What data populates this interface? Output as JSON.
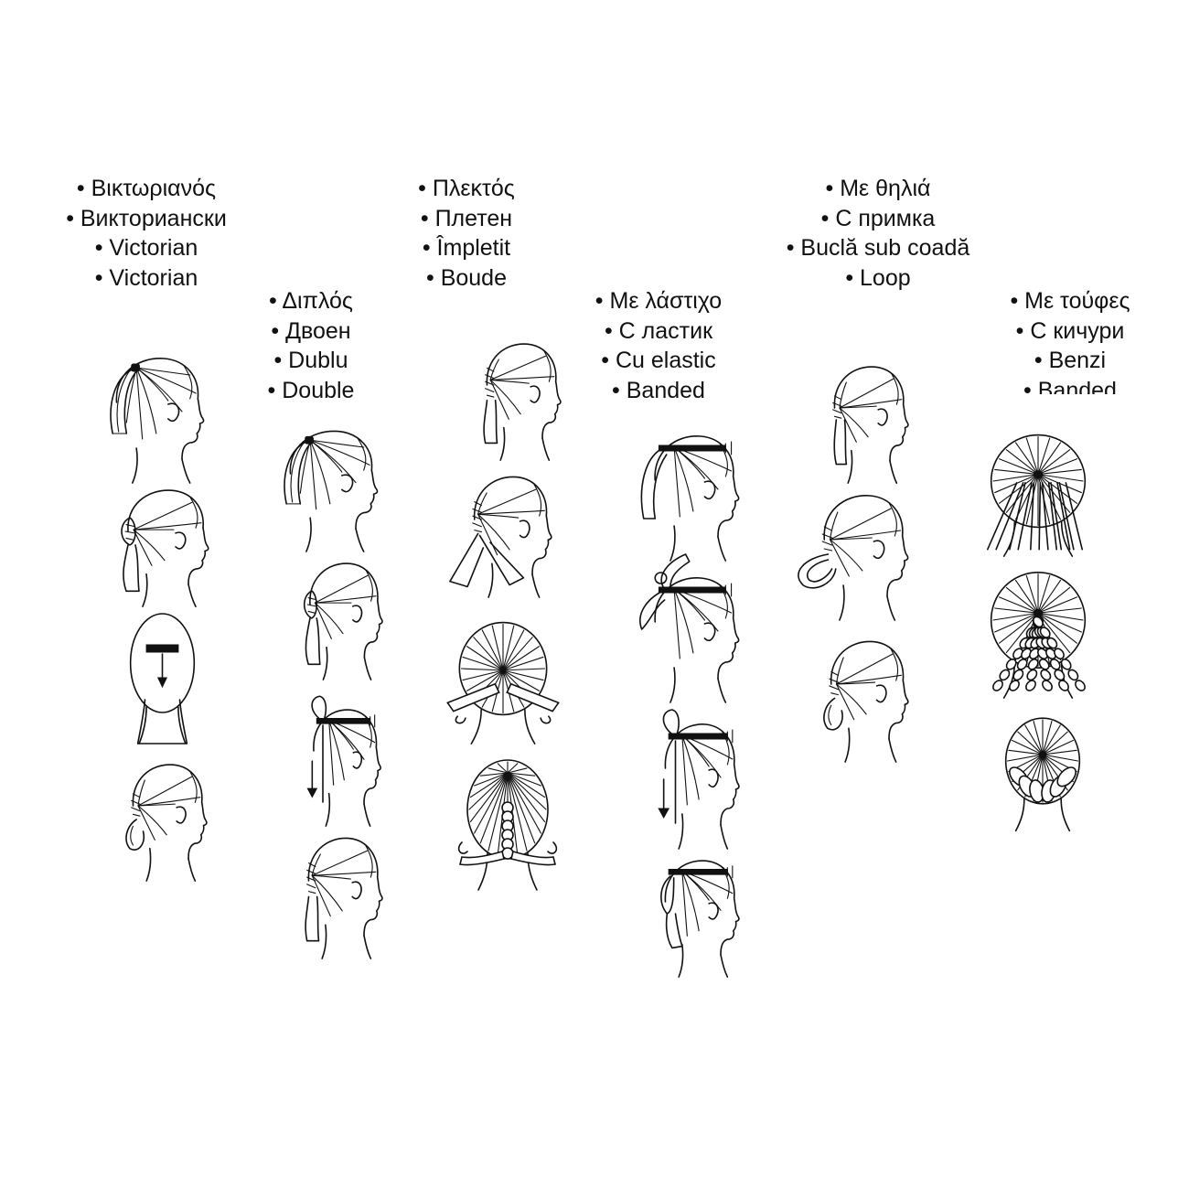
{
  "columns": [
    {
      "id": "victorian",
      "labels": [
        "• Βικτωριανός",
        "• Викториански",
        "• Victorian",
        "• Victorian"
      ]
    },
    {
      "id": "double",
      "labels": [
        "• Διπλός",
        "• Двоен",
        "• Dublu",
        "• Double"
      ]
    },
    {
      "id": "braided",
      "labels": [
        "• Πλεκτός",
        "• Плетен",
        "• Împletit",
        "• Boude"
      ]
    },
    {
      "id": "elastic",
      "labels": [
        "• Με λάστιχο",
        "• С ластик",
        "• Cu elastic",
        "• Banded"
      ]
    },
    {
      "id": "loop",
      "labels": [
        "• Με θηλιά",
        "• С примка",
        "• Buclă sub coadă",
        "• Loop"
      ]
    },
    {
      "id": "tufts",
      "labels": [
        "• Με τούφες",
        "• С кичури",
        "• Benzi",
        "• Banded"
      ]
    }
  ]
}
